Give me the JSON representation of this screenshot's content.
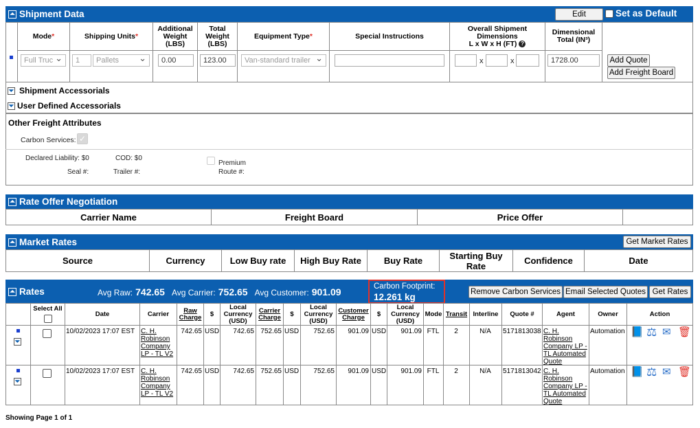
{
  "shipment": {
    "title": "Shipment Data",
    "edit_label": "Edit",
    "default_label": "Set as Default",
    "cols": {
      "mode": "Mode",
      "units": "Shipping Units",
      "addl_weight": "Additional Weight (LBS)",
      "total_weight": "Total Weight (LBS)",
      "equipment": "Equipment Type",
      "special": "Special Instructions",
      "dims": "Overall Shipment Dimensions",
      "dims_sub": "L x W x H (FT)",
      "dim_total": "Dimensional Total (IN³)"
    },
    "row": {
      "mode": "Full Truc",
      "units_qty": "1",
      "units_type": "Pallets",
      "addl": "0.00",
      "total": "123.00",
      "equipment": "Van-standard trailer",
      "special": "",
      "dim_l": "",
      "dim_w": "",
      "dim_h": "",
      "dim_total": "1728.00"
    },
    "x_sep": "x",
    "add_quote": "Add Quote",
    "add_freight": "Add Freight Board",
    "accessorials": "Shipment Accessorials",
    "user_accessorials": "User Defined Accessorials",
    "ofa_title": "Other Freight Attributes",
    "carbon_services": "Carbon Services:",
    "declared": "Declared Liability: $0",
    "cod": "COD: $0",
    "premium": "Premium Route #:",
    "premium_l1": "Premium",
    "premium_l2": "Route #:",
    "seal": "Seal #:",
    "trailer": "Trailer #:"
  },
  "rate_offer": {
    "title": "Rate Offer Negotiation",
    "cols": [
      "Carrier Name",
      "Freight Board",
      "Price Offer",
      ""
    ]
  },
  "market": {
    "title": "Market Rates",
    "button": "Get Market Rates",
    "cols": [
      "Source",
      "Currency",
      "Low Buy rate",
      "High Buy Rate",
      "Buy Rate",
      "Starting Buy Rate",
      "Confidence",
      "Date"
    ]
  },
  "rates": {
    "title": "Rates",
    "avg_raw_label": "Avg Raw:",
    "avg_raw": "742.65",
    "avg_carrier_label": "Avg Carrier:",
    "avg_carrier": "752.65",
    "avg_customer_label": "Avg Customer:",
    "avg_customer": "901.09",
    "carbon_label": "Carbon Footprint:",
    "carbon_value": "12.261 kg",
    "buttons": {
      "remove": "Remove Carbon Services",
      "email": "Email Selected Quotes",
      "get": "Get Rates"
    },
    "cols": {
      "select": "Select All",
      "date": "Date",
      "carrier": "Carrier",
      "raw": "Raw Charge",
      "cur": "$",
      "local": "Local Currency (USD)",
      "carrier_charge": "Carrier Charge",
      "customer": "Customer Charge",
      "mode": "Mode",
      "transit": "Transit",
      "interline": "Interline",
      "quote": "Quote #",
      "agent": "Agent",
      "owner": "Owner",
      "action": "Action"
    },
    "rows": [
      {
        "date": "10/02/2023 17:07 EST",
        "carrier": "C. H. Robinson Company LP - TL V2",
        "raw": "742.65",
        "cur1": "USD",
        "local1": "742.65",
        "carrier_charge": "752.65",
        "cur2": "USD",
        "local2": "752.65",
        "customer": "901.09",
        "cur3": "USD",
        "local3": "901.09",
        "mode": "FTL",
        "transit": "2",
        "interline": "N/A",
        "quote": "5171813038",
        "agent": "C. H. Robinson Company LP - TL Automated Quote",
        "owner": "Automation"
      },
      {
        "date": "10/02/2023 17:07 EST",
        "carrier": "C. H. Robinson Company LP - TL V2",
        "raw": "742.65",
        "cur1": "USD",
        "local1": "742.65",
        "carrier_charge": "752.65",
        "cur2": "USD",
        "local2": "752.65",
        "customer": "901.09",
        "cur3": "USD",
        "local3": "901.09",
        "mode": "FTL",
        "transit": "2",
        "interline": "N/A",
        "quote": "5171813042",
        "agent": "C. H. Robinson Company LP - TL Automated Quote",
        "owner": "Automation"
      }
    ],
    "footer": "Showing Page 1 of 1"
  },
  "icons": [
    "collapse-icon",
    "expand-icon",
    "help-icon",
    "book-icon",
    "scale-icon",
    "mail-icon",
    "trash-icon"
  ],
  "colors": {
    "header": "#0c5fb0",
    "highlight": "#e0322a",
    "required": "#e0322a"
  }
}
